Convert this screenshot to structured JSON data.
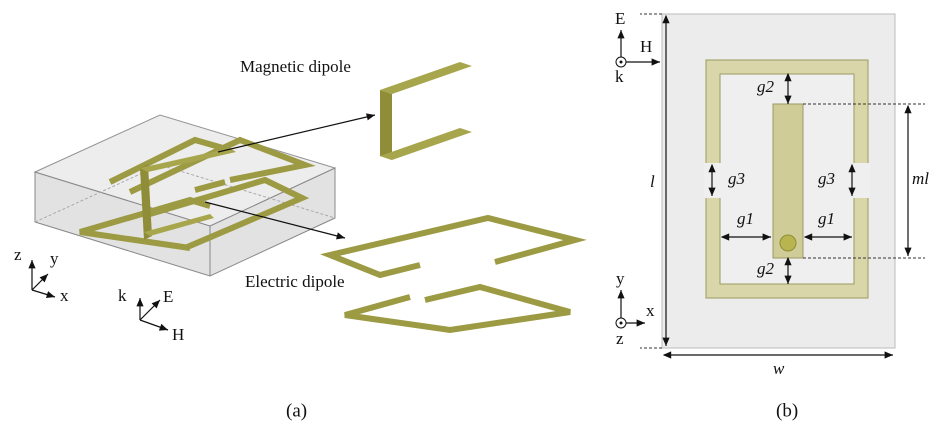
{
  "panel_a": {
    "magnetic_label": "Magnetic dipole",
    "electric_label": "Electric dipole",
    "axes": [
      "z",
      "y",
      "x"
    ],
    "field": [
      "k",
      "E",
      "H"
    ],
    "caption": "(a)"
  },
  "panel_b": {
    "field": [
      "E",
      "H",
      "k"
    ],
    "dims": {
      "g2_top": "g2",
      "g3_left": "g3",
      "g3_right": "g3",
      "g1_left": "g1",
      "g1_right": "g1",
      "g2_bottom": "g2",
      "ml": "ml",
      "l": "l",
      "w": "w"
    },
    "axes": [
      "y",
      "x",
      "z"
    ],
    "caption": "(b)"
  }
}
